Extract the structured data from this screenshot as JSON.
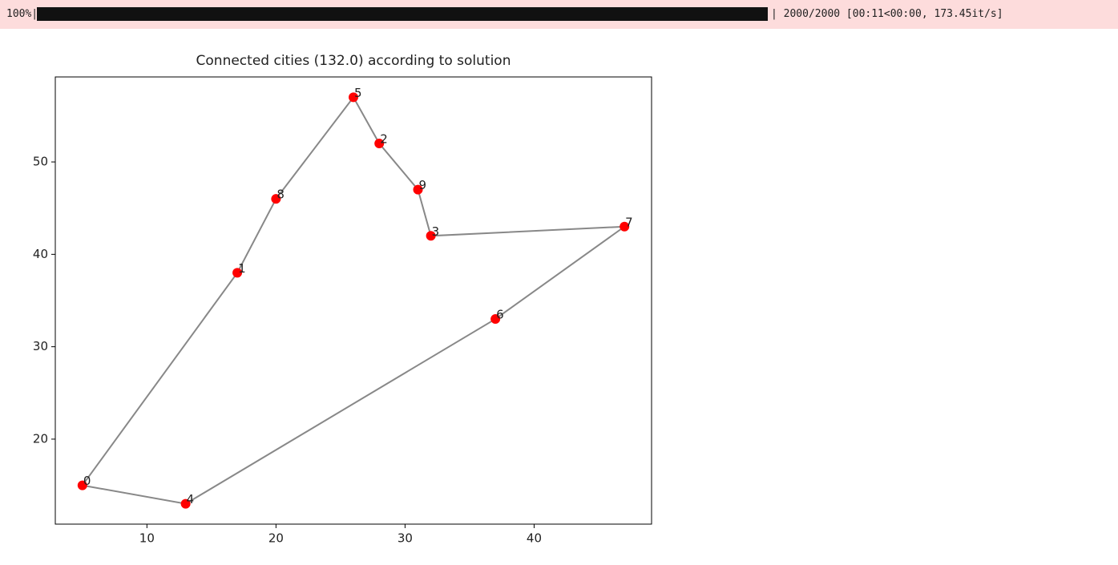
{
  "progress": {
    "percent": "100%|",
    "status": "| 2000/2000 [00:11<00:00, 173.45it/s]"
  },
  "chart_data": {
    "type": "scatter",
    "title": "Connected cities (132.0) according to solution",
    "points": {
      "labels": [
        "0",
        "1",
        "2",
        "3",
        "4",
        "5",
        "6",
        "7",
        "8",
        "9"
      ],
      "x": [
        5,
        17,
        28,
        32,
        13,
        26,
        37,
        47,
        20,
        31
      ],
      "y": [
        15,
        38,
        52,
        42,
        13,
        57,
        33,
        43,
        46,
        47
      ],
      "color": "#ff0000"
    },
    "route": {
      "x": [
        5,
        17,
        20,
        26,
        28,
        31,
        32,
        47,
        37,
        13,
        5
      ],
      "y": [
        15,
        38,
        46,
        57,
        52,
        47,
        42,
        43,
        33,
        13,
        15
      ],
      "color": "#888888"
    },
    "xlim": [
      2.9,
      49.1
    ],
    "ylim": [
      10.8,
      59.2
    ],
    "xticks": [
      10,
      20,
      30,
      40
    ],
    "yticks": [
      20,
      30,
      40,
      50
    ]
  }
}
